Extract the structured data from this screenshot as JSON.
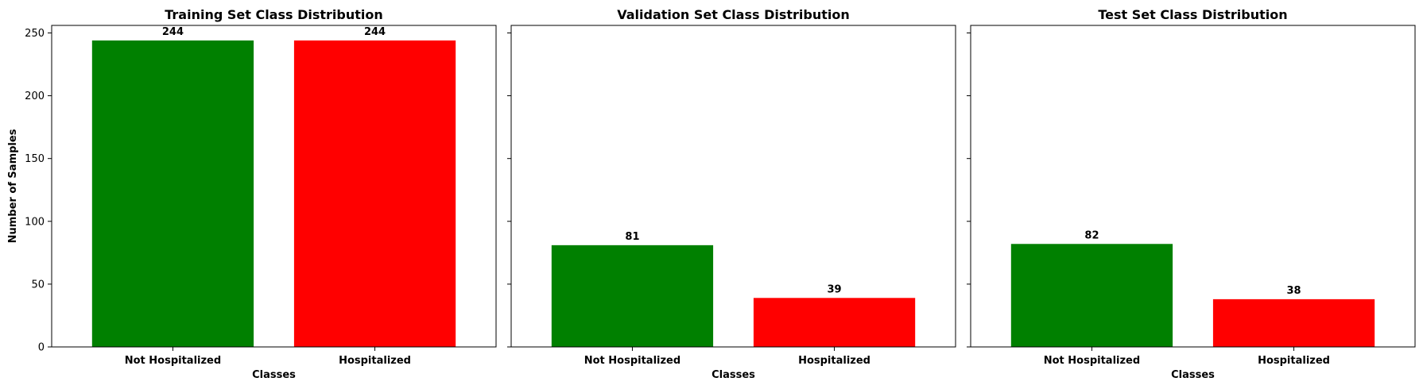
{
  "chart_data": [
    {
      "type": "bar",
      "title": "Training Set Class Distribution",
      "xlabel": "Classes",
      "ylabel": "Number of Samples",
      "categories": [
        "Not Hospitalized",
        "Hospitalized"
      ],
      "values": [
        244,
        244
      ],
      "colors": [
        "#008000",
        "#ff0000"
      ],
      "ylim": [
        0,
        256
      ],
      "yticks": [
        0,
        50,
        100,
        150,
        200,
        250
      ],
      "show_ytick_labels": true,
      "grid": false
    },
    {
      "type": "bar",
      "title": "Validation Set Class Distribution",
      "xlabel": "Classes",
      "ylabel": "",
      "categories": [
        "Not Hospitalized",
        "Hospitalized"
      ],
      "values": [
        81,
        39
      ],
      "colors": [
        "#008000",
        "#ff0000"
      ],
      "ylim": [
        0,
        256
      ],
      "yticks": [
        0,
        50,
        100,
        150,
        200,
        250
      ],
      "show_ytick_labels": false,
      "grid": false
    },
    {
      "type": "bar",
      "title": "Test Set Class Distribution",
      "xlabel": "Classes",
      "ylabel": "",
      "categories": [
        "Not Hospitalized",
        "Hospitalized"
      ],
      "values": [
        82,
        38
      ],
      "colors": [
        "#008000",
        "#ff0000"
      ],
      "ylim": [
        0,
        256
      ],
      "yticks": [
        0,
        50,
        100,
        150,
        200,
        250
      ],
      "show_ytick_labels": false,
      "grid": false
    }
  ]
}
